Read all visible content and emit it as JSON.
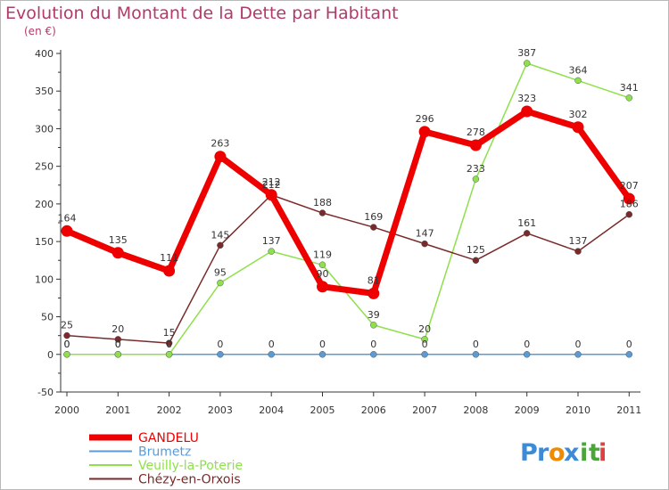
{
  "chart_data": {
    "type": "line",
    "title": "Evolution du Montant de la Dette par Habitant",
    "subtitle": "(en €)",
    "categories": [
      "2000",
      "2001",
      "2002",
      "2003",
      "2004",
      "2005",
      "2006",
      "2007",
      "2008",
      "2009",
      "2010",
      "2011"
    ],
    "ylim": [
      -50,
      400
    ],
    "yticks": [
      -50,
      0,
      50,
      100,
      150,
      200,
      250,
      300,
      350,
      400
    ],
    "grid": false,
    "legend_placement": "bottom-left",
    "series": [
      {
        "name": "GANDELU",
        "color": "#ee0000",
        "values": [
          164,
          135,
          111,
          263,
          212,
          90,
          81,
          296,
          278,
          323,
          302,
          207
        ]
      },
      {
        "name": "Brumetz",
        "color": "#5b9bd5",
        "values": [
          0,
          0,
          0,
          0,
          0,
          0,
          0,
          0,
          0,
          0,
          0,
          0
        ]
      },
      {
        "name": "Veuilly-la-Poterie",
        "color": "#8ee04c",
        "values": [
          0,
          0,
          0,
          95,
          137,
          119,
          39,
          20,
          233,
          387,
          364,
          341
        ]
      },
      {
        "name": "Chézy-en-Orxois",
        "color": "#7a2a2a",
        "values": [
          25,
          20,
          15,
          145,
          212,
          188,
          169,
          147,
          125,
          161,
          137,
          186
        ]
      }
    ]
  },
  "logo": {
    "text": "Proxiti",
    "letters": [
      "P",
      "r",
      "o",
      "x",
      "i",
      "t",
      "i"
    ],
    "colors": [
      "#3d8ad6",
      "#3d8ad6",
      "#f08a00",
      "#3d8ad6",
      "#4aa63b",
      "#4aa63b",
      "#e04040"
    ]
  }
}
